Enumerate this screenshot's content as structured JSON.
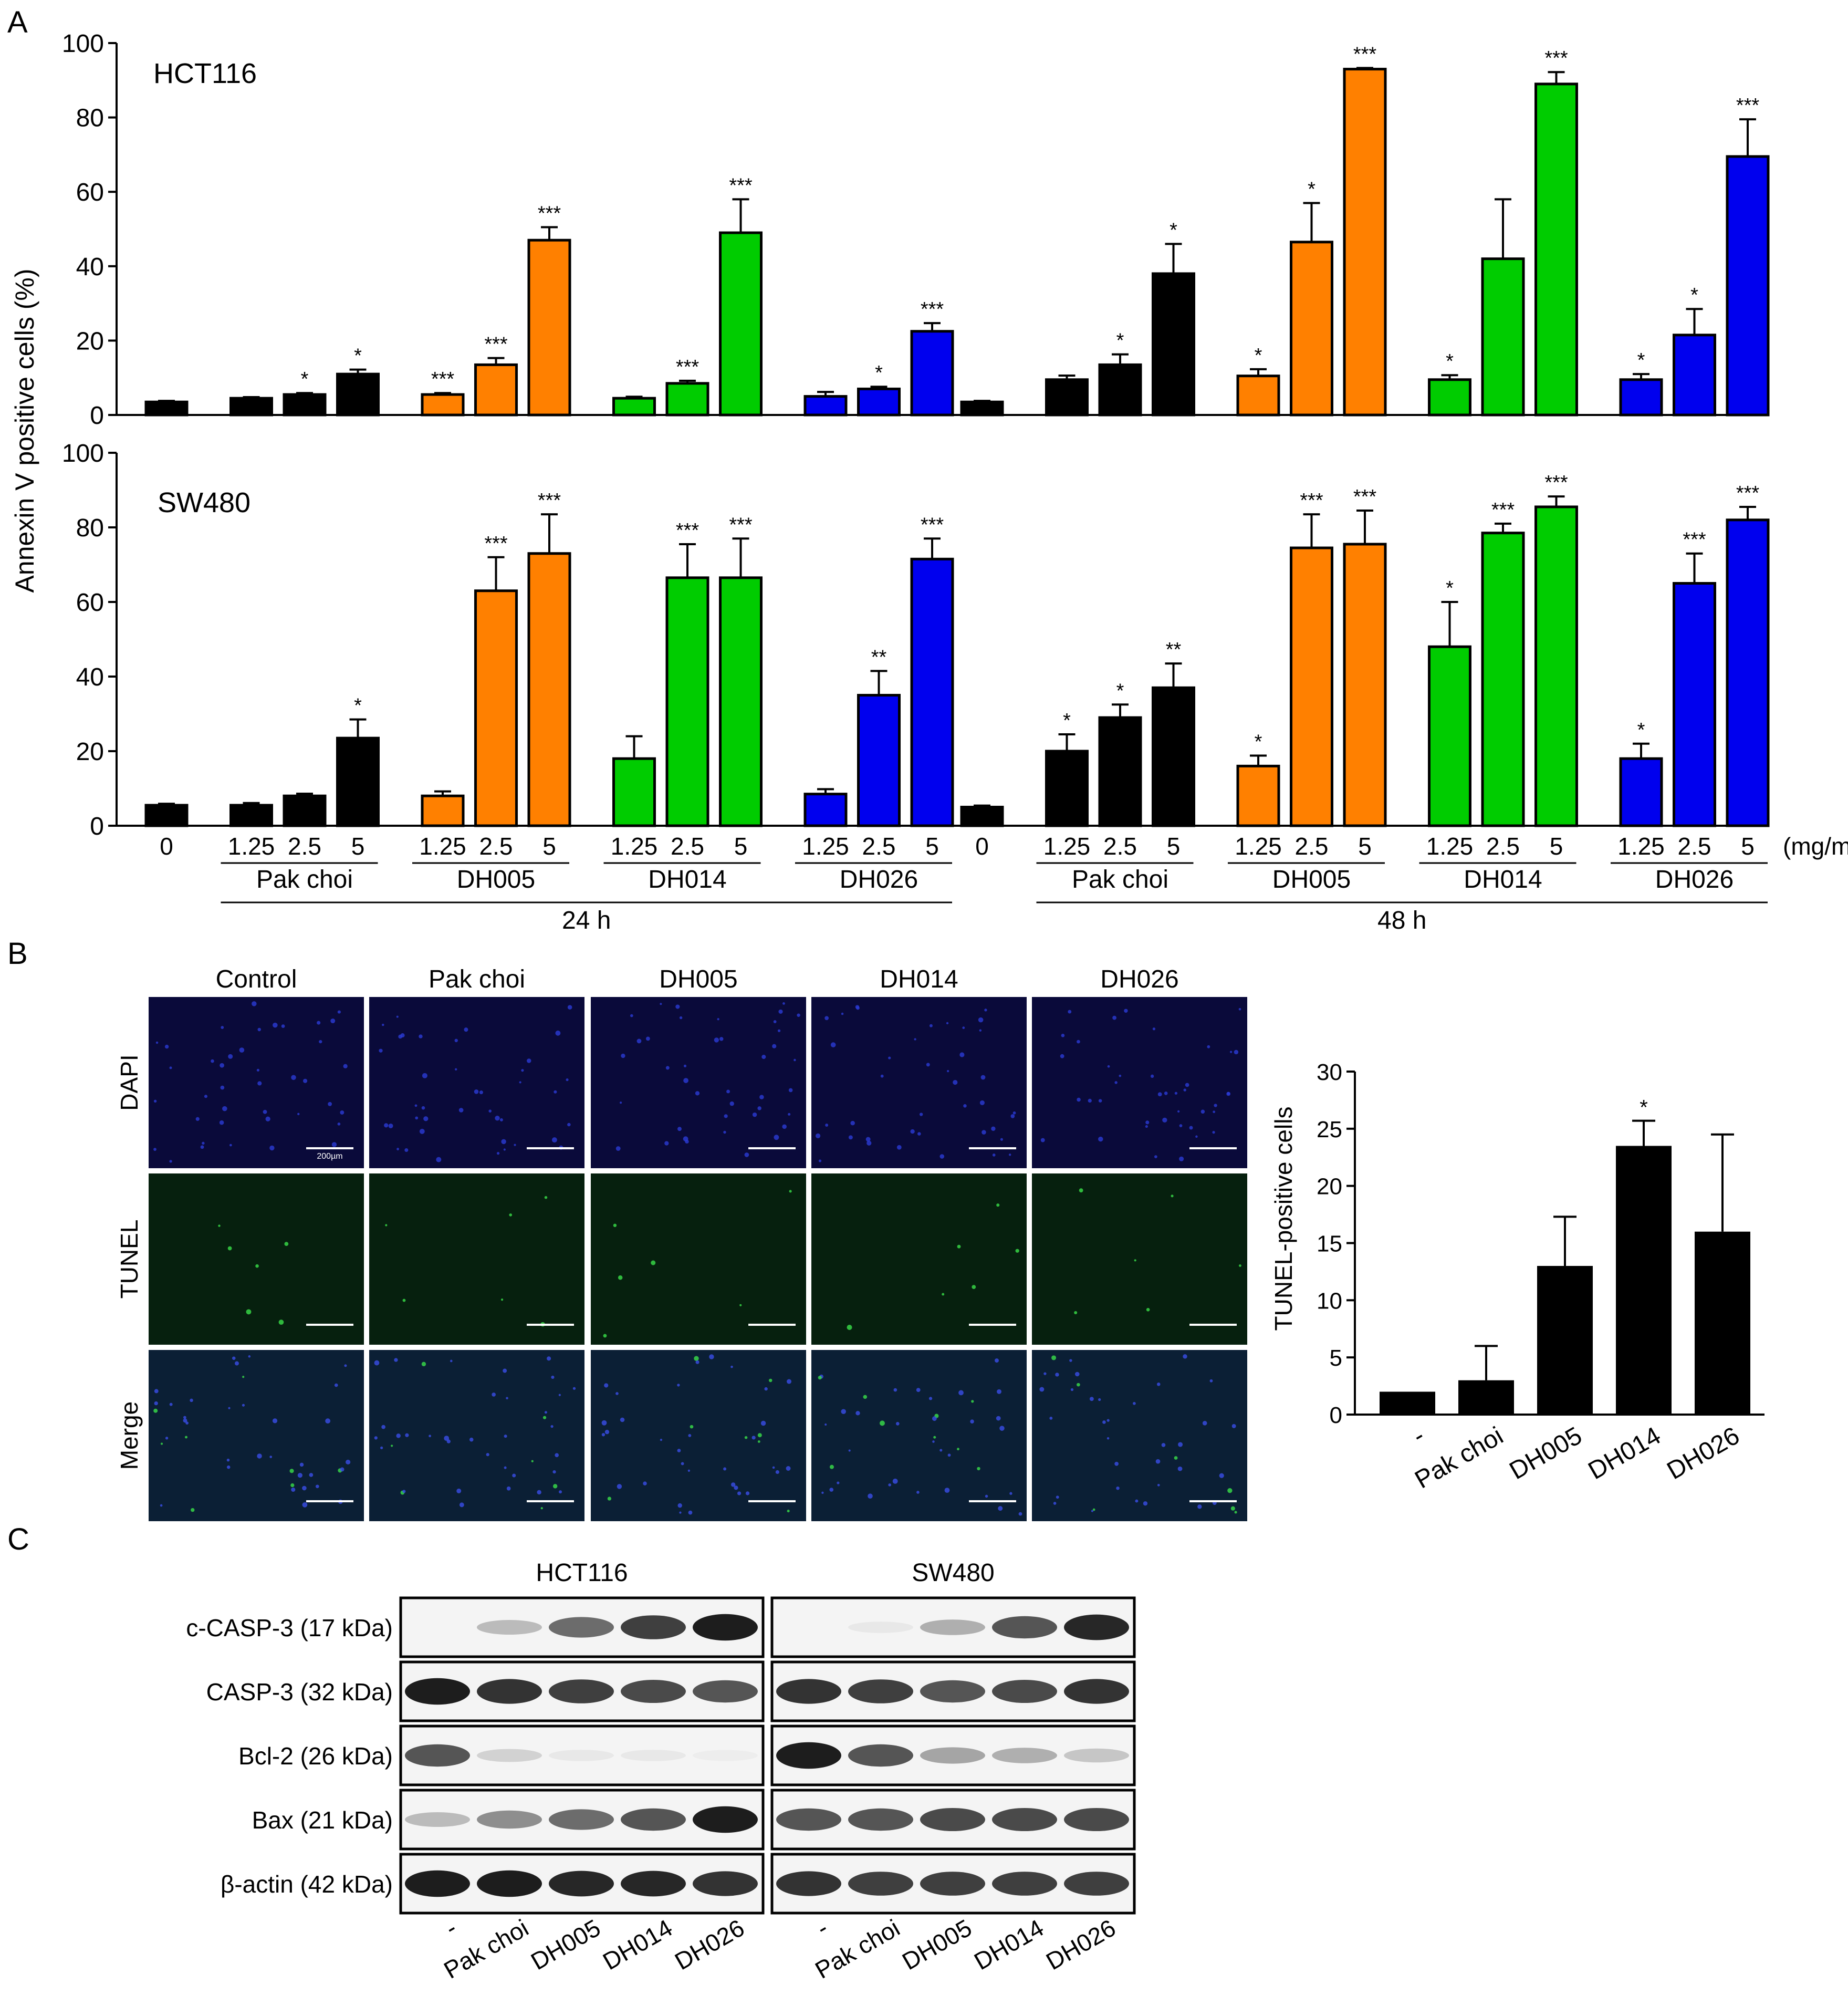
{
  "panel_letters": {
    "a": "A",
    "b": "B",
    "c": "C"
  },
  "panel_a": {
    "ylabel": "Annexin V positive cells (%)",
    "unit": "(mg/mL)",
    "conc_labels": [
      "0",
      "1.25",
      "2.5",
      "5",
      "1.25",
      "2.5",
      "5",
      "1.25",
      "2.5",
      "5",
      "1.25",
      "2.5",
      "5"
    ],
    "group_labels": [
      "Pak choi",
      "DH005",
      "DH014",
      "DH026"
    ],
    "time_labels": [
      "24 h",
      "48 h"
    ],
    "colors": {
      "Control/Pak choi": "#000000",
      "DH005": "#ff8000",
      "DH014": "#00cc00",
      "DH026": "#0000ee"
    }
  },
  "panel_b": {
    "columns": [
      "Control",
      "Pak choi",
      "DH005",
      "DH014",
      "DH026"
    ],
    "rows": [
      "DAPI",
      "TUNEL",
      "Merge"
    ],
    "scalebar_label": "200µm",
    "colors": {
      "DAPI": "#0a0a3a",
      "TUNEL": "#06200e",
      "Merge": "#0b1f35"
    }
  },
  "panel_c": {
    "cell_lines": [
      "HCT116",
      "SW480"
    ],
    "proteins": [
      "c-CASP-3 (17 kDa)",
      "CASP-3 (32 kDa)",
      "Bcl-2 (26 kDa)",
      "Bax (21 kDa)",
      "β-actin (42 kDa)"
    ],
    "lane_labels": [
      "-",
      "Pak choi",
      "DH005",
      "DH014",
      "DH026"
    ]
  },
  "chart_data": [
    {
      "type": "bar",
      "title": "HCT116",
      "ylabel": "Annexin V positive cells (%)",
      "ylim": [
        0,
        100
      ],
      "yticks": [
        0,
        20,
        40,
        60,
        80,
        100
      ],
      "categories": [
        "0",
        "1.25",
        "2.5",
        "5",
        "1.25",
        "2.5",
        "5",
        "1.25",
        "2.5",
        "5",
        "1.25",
        "2.5",
        "5",
        "0",
        "1.25",
        "2.5",
        "5",
        "1.25",
        "2.5",
        "5",
        "1.25",
        "2.5",
        "5",
        "1.25",
        "2.5",
        "5"
      ],
      "groups": [
        "Control",
        "Pak choi",
        "Pak choi",
        "Pak choi",
        "DH005",
        "DH005",
        "DH005",
        "DH014",
        "DH014",
        "DH014",
        "DH026",
        "DH026",
        "DH026",
        "Control",
        "Pak choi",
        "Pak choi",
        "Pak choi",
        "DH005",
        "DH005",
        "DH005",
        "DH014",
        "DH014",
        "DH014",
        "DH026",
        "DH026",
        "DH026"
      ],
      "time": [
        "24 h",
        "24 h",
        "24 h",
        "24 h",
        "24 h",
        "24 h",
        "24 h",
        "24 h",
        "24 h",
        "24 h",
        "24 h",
        "24 h",
        "24 h",
        "48 h",
        "48 h",
        "48 h",
        "48 h",
        "48 h",
        "48 h",
        "48 h",
        "48 h",
        "48 h",
        "48 h",
        "48 h",
        "48 h",
        "48 h"
      ],
      "values": [
        3.5,
        4.5,
        5.5,
        11,
        5.5,
        13.5,
        47,
        4.5,
        8.5,
        49,
        5,
        7,
        22.5,
        3.5,
        9.5,
        13.5,
        38,
        10.5,
        46.5,
        93,
        9.5,
        42,
        89,
        9.5,
        21.5,
        69.5
      ],
      "errors": [
        0.3,
        0.3,
        0.4,
        1.2,
        0.4,
        1.8,
        3.5,
        0.4,
        0.7,
        9,
        1.2,
        0.6,
        2.2,
        0.3,
        1.1,
        2.8,
        8,
        1.8,
        10.5,
        0.3,
        1.2,
        16,
        3.2,
        1.5,
        7,
        10
      ],
      "significance": [
        "",
        "",
        "*",
        "*",
        "***",
        "***",
        "***",
        "",
        "***",
        "***",
        "",
        "*",
        "***",
        "",
        "",
        "*",
        "*",
        "*",
        "*",
        "***",
        "*",
        "",
        "***",
        "*",
        "*",
        "***"
      ]
    },
    {
      "type": "bar",
      "title": "SW480",
      "ylabel": "Annexin V positive cells (%)",
      "ylim": [
        0,
        100
      ],
      "yticks": [
        0,
        20,
        40,
        60,
        80,
        100
      ],
      "categories": [
        "0",
        "1.25",
        "2.5",
        "5",
        "1.25",
        "2.5",
        "5",
        "1.25",
        "2.5",
        "5",
        "1.25",
        "2.5",
        "5",
        "0",
        "1.25",
        "2.5",
        "5",
        "1.25",
        "2.5",
        "5",
        "1.25",
        "2.5",
        "5",
        "1.25",
        "2.5",
        "5"
      ],
      "groups": [
        "Control",
        "Pak choi",
        "Pak choi",
        "Pak choi",
        "DH005",
        "DH005",
        "DH005",
        "DH014",
        "DH014",
        "DH014",
        "DH026",
        "DH026",
        "DH026",
        "Control",
        "Pak choi",
        "Pak choi",
        "Pak choi",
        "DH005",
        "DH005",
        "DH005",
        "DH014",
        "DH014",
        "DH014",
        "DH026",
        "DH026",
        "DH026"
      ],
      "time": [
        "24 h",
        "24 h",
        "24 h",
        "24 h",
        "24 h",
        "24 h",
        "24 h",
        "24 h",
        "24 h",
        "24 h",
        "24 h",
        "24 h",
        "24 h",
        "48 h",
        "48 h",
        "48 h",
        "48 h",
        "48 h",
        "48 h",
        "48 h",
        "48 h",
        "48 h",
        "48 h",
        "48 h",
        "48 h",
        "48 h"
      ],
      "values": [
        5.5,
        5.5,
        8,
        23.5,
        8,
        63,
        73,
        18,
        66.5,
        66.5,
        8.5,
        35,
        71.5,
        5,
        20,
        29,
        37,
        16,
        74.5,
        75.5,
        48,
        78.5,
        85.5,
        18,
        65,
        82
      ],
      "errors": [
        0.4,
        0.6,
        0.6,
        5,
        1.2,
        9,
        10.5,
        6,
        9,
        10.5,
        1.3,
        6.5,
        5.5,
        0.4,
        4.5,
        3.5,
        6.5,
        2.8,
        9,
        9,
        12,
        2.5,
        2.8,
        4,
        8,
        3.5
      ],
      "significance": [
        "",
        "",
        "",
        "*",
        "",
        "***",
        "***",
        "",
        "***",
        "***",
        "",
        "**",
        "***",
        "",
        "*",
        "*",
        "**",
        "*",
        "***",
        "***",
        "*",
        "***",
        "***",
        "*",
        "***",
        "***"
      ]
    },
    {
      "type": "bar",
      "title": "",
      "ylabel": "TUNEL-positive cells",
      "ylim": [
        0,
        30
      ],
      "yticks": [
        0,
        5,
        10,
        15,
        20,
        25,
        30
      ],
      "categories": [
        "-",
        "Pak choi",
        "DH005",
        "DH014",
        "DH026"
      ],
      "values": [
        2,
        3,
        13,
        23.5,
        16
      ],
      "errors": [
        0,
        3,
        4.3,
        2.2,
        8.5
      ],
      "significance": [
        "",
        "",
        "",
        "*",
        ""
      ]
    }
  ]
}
